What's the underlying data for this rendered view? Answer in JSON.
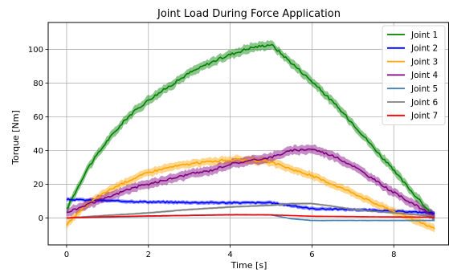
{
  "chart_data": {
    "type": "line",
    "title": "Joint Load During Force Application",
    "xlabel": "Time [s]",
    "ylabel": "Torque [Nm]",
    "xlim": [
      -0.45,
      9.35
    ],
    "ylim": [
      -16,
      116
    ],
    "xticks": [
      0,
      2,
      4,
      6,
      8
    ],
    "yticks": [
      0,
      20,
      40,
      60,
      80,
      100
    ],
    "grid": true,
    "legend_position": "top-right",
    "series": [
      {
        "name": "Joint 1",
        "color": "#008000",
        "band": 3.0,
        "noise": 1.6,
        "points": [
          [
            0,
            5
          ],
          [
            0.5,
            29
          ],
          [
            1,
            46
          ],
          [
            1.5,
            60
          ],
          [
            2,
            70
          ],
          [
            2.5,
            78
          ],
          [
            3,
            86
          ],
          [
            3.5,
            92
          ],
          [
            4,
            97
          ],
          [
            4.5,
            101
          ],
          [
            5,
            103
          ],
          [
            5.5,
            92
          ],
          [
            6,
            81
          ],
          [
            6.5,
            69
          ],
          [
            7,
            56
          ],
          [
            7.5,
            42
          ],
          [
            8,
            28
          ],
          [
            8.5,
            14
          ],
          [
            9,
            0
          ]
        ]
      },
      {
        "name": "Joint 2",
        "color": "#0000ff",
        "band": 1.2,
        "noise": 0.7,
        "points": [
          [
            0,
            11
          ],
          [
            1,
            10.2
          ],
          [
            2,
            9.5
          ],
          [
            3,
            9.2
          ],
          [
            4,
            9
          ],
          [
            5,
            9
          ],
          [
            6,
            5.5
          ],
          [
            7,
            5
          ],
          [
            8,
            4
          ],
          [
            9,
            3
          ]
        ]
      },
      {
        "name": "Joint 3",
        "color": "#ffa500",
        "band": 2.6,
        "noise": 1.2,
        "points": [
          [
            0,
            -4
          ],
          [
            0.5,
            8
          ],
          [
            1,
            16
          ],
          [
            1.5,
            22
          ],
          [
            2,
            27
          ],
          [
            2.5,
            30
          ],
          [
            3,
            32
          ],
          [
            3.5,
            33.5
          ],
          [
            4,
            34.5
          ],
          [
            4.5,
            34.5
          ],
          [
            5,
            33
          ],
          [
            5.5,
            29
          ],
          [
            6,
            25
          ],
          [
            6.5,
            20
          ],
          [
            7,
            15
          ],
          [
            7.5,
            9
          ],
          [
            8,
            4
          ],
          [
            8.5,
            -1
          ],
          [
            9,
            -6
          ]
        ]
      },
      {
        "name": "Joint 4",
        "color": "#800080",
        "band": 3.0,
        "noise": 1.3,
        "points": [
          [
            0,
            3
          ],
          [
            0.5,
            8
          ],
          [
            1,
            12
          ],
          [
            1.5,
            17
          ],
          [
            2,
            20
          ],
          [
            2.5,
            23
          ],
          [
            3,
            26
          ],
          [
            3.5,
            28
          ],
          [
            4,
            32
          ],
          [
            4.5,
            34
          ],
          [
            5,
            36
          ],
          [
            5.5,
            40
          ],
          [
            6,
            41
          ],
          [
            6.5,
            37
          ],
          [
            7,
            31
          ],
          [
            7.5,
            23
          ],
          [
            8,
            15
          ],
          [
            8.5,
            8
          ],
          [
            9,
            1
          ]
        ]
      },
      {
        "name": "Joint 5",
        "color": "#4682b4",
        "band": 0.5,
        "noise": 0.1,
        "points": [
          [
            0,
            0
          ],
          [
            1,
            0.5
          ],
          [
            2,
            1
          ],
          [
            3,
            1.5
          ],
          [
            4,
            2
          ],
          [
            5,
            1.8
          ],
          [
            5.5,
            -0.5
          ],
          [
            6,
            -1.5
          ],
          [
            7,
            -1.5
          ],
          [
            8,
            -1.5
          ],
          [
            9,
            -1.5
          ]
        ]
      },
      {
        "name": "Joint 6",
        "color": "#808080",
        "band": 0.7,
        "noise": 0.15,
        "points": [
          [
            0,
            0
          ],
          [
            1,
            1.5
          ],
          [
            2,
            3
          ],
          [
            3,
            5
          ],
          [
            4,
            6.5
          ],
          [
            5,
            7.5
          ],
          [
            5.5,
            8.5
          ],
          [
            6,
            8.5
          ],
          [
            6.5,
            7
          ],
          [
            7,
            5
          ],
          [
            7.5,
            4
          ],
          [
            8,
            3
          ],
          [
            8.5,
            2
          ],
          [
            9,
            1
          ]
        ]
      },
      {
        "name": "Joint 7",
        "color": "#ff0000",
        "band": 0.3,
        "noise": 0.05,
        "points": [
          [
            0,
            0
          ],
          [
            1,
            0.7
          ],
          [
            2,
            1.2
          ],
          [
            3,
            1.5
          ],
          [
            4,
            1.8
          ],
          [
            5,
            1.8
          ],
          [
            6,
            1
          ],
          [
            7,
            0.8
          ],
          [
            8,
            0.6
          ],
          [
            9,
            0.5
          ]
        ]
      }
    ]
  }
}
